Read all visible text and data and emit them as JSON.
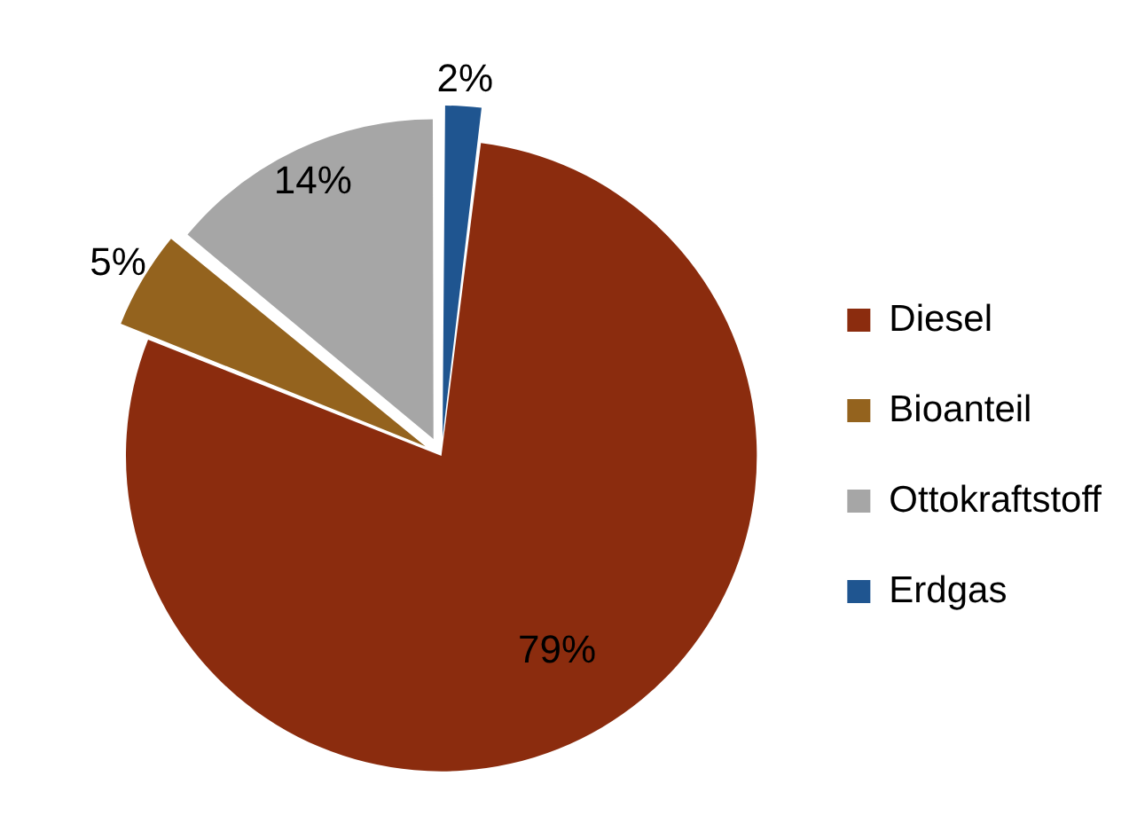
{
  "chart_data": {
    "type": "pie",
    "categories": [
      "Diesel",
      "Bioanteil",
      "Ottokraftstoff",
      "Erdgas"
    ],
    "values": [
      79,
      5,
      14,
      2
    ],
    "colors": [
      "#8b2c0e",
      "#94631e",
      "#a6a6a6",
      "#1f5590"
    ],
    "value_labels": [
      "79%",
      "5%",
      "14%",
      "2%"
    ],
    "legend": "right"
  }
}
